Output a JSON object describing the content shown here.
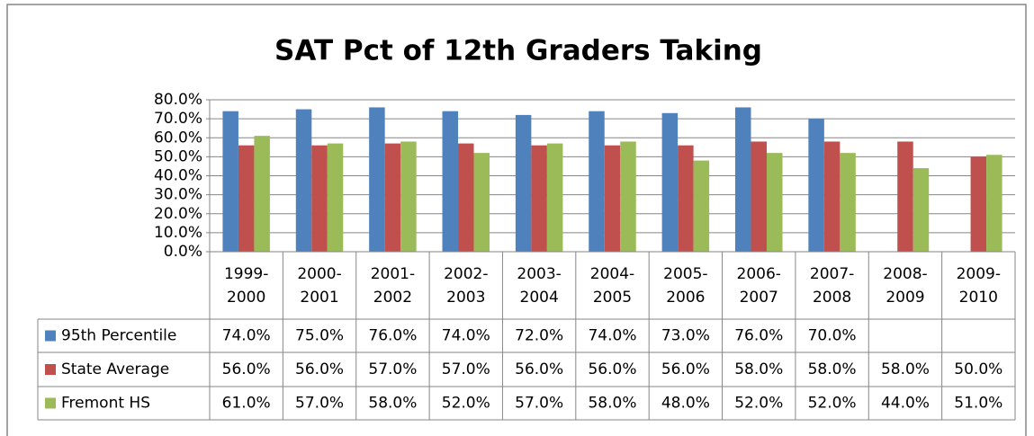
{
  "chart_data": {
    "type": "bar",
    "title": "SAT Pct of 12th Graders Taking",
    "categories": [
      "1999-2000",
      "2000-2001",
      "2001-2002",
      "2002-2003",
      "2003-2004",
      "2004-2005",
      "2005-2006",
      "2006-2007",
      "2007-2008",
      "2008-2009",
      "2009-2010"
    ],
    "series": [
      {
        "name": "95th Percentile",
        "color": "#4f81bd",
        "values": [
          74,
          75,
          76,
          74,
          72,
          74,
          73,
          76,
          70,
          null,
          null
        ],
        "value_labels": [
          "74.0%",
          "75.0%",
          "76.0%",
          "74.0%",
          "72.0%",
          "74.0%",
          "73.0%",
          "76.0%",
          "70.0%",
          null,
          null
        ]
      },
      {
        "name": "State Average",
        "color": "#c0504d",
        "values": [
          56,
          56,
          57,
          57,
          56,
          56,
          56,
          58,
          58,
          58,
          50
        ],
        "value_labels": [
          "56.0%",
          "56.0%",
          "57.0%",
          "57.0%",
          "56.0%",
          "56.0%",
          "56.0%",
          "58.0%",
          "58.0%",
          "58.0%",
          "50.0%"
        ]
      },
      {
        "name": "Fremont HS",
        "color": "#9bbb59",
        "values": [
          61,
          57,
          58,
          52,
          57,
          58,
          48,
          52,
          52,
          44,
          51
        ],
        "value_labels": [
          "61.0%",
          "57.0%",
          "58.0%",
          "52.0%",
          "57.0%",
          "58.0%",
          "48.0%",
          "52.0%",
          "52.0%",
          "44.0%",
          "51.0%"
        ]
      }
    ],
    "ylim": [
      0,
      80
    ],
    "yticks": [
      {
        "value": 0,
        "label": "0.0%"
      },
      {
        "value": 10,
        "label": "10.0%"
      },
      {
        "value": 20,
        "label": "20.0%"
      },
      {
        "value": 30,
        "label": "30.0%"
      },
      {
        "value": 40,
        "label": "40.0%"
      },
      {
        "value": 50,
        "label": "50.0%"
      },
      {
        "value": 60,
        "label": "60.0%"
      },
      {
        "value": 70,
        "label": "70.0%"
      },
      {
        "value": 80,
        "label": "80.0%"
      }
    ],
    "grid": true
  }
}
